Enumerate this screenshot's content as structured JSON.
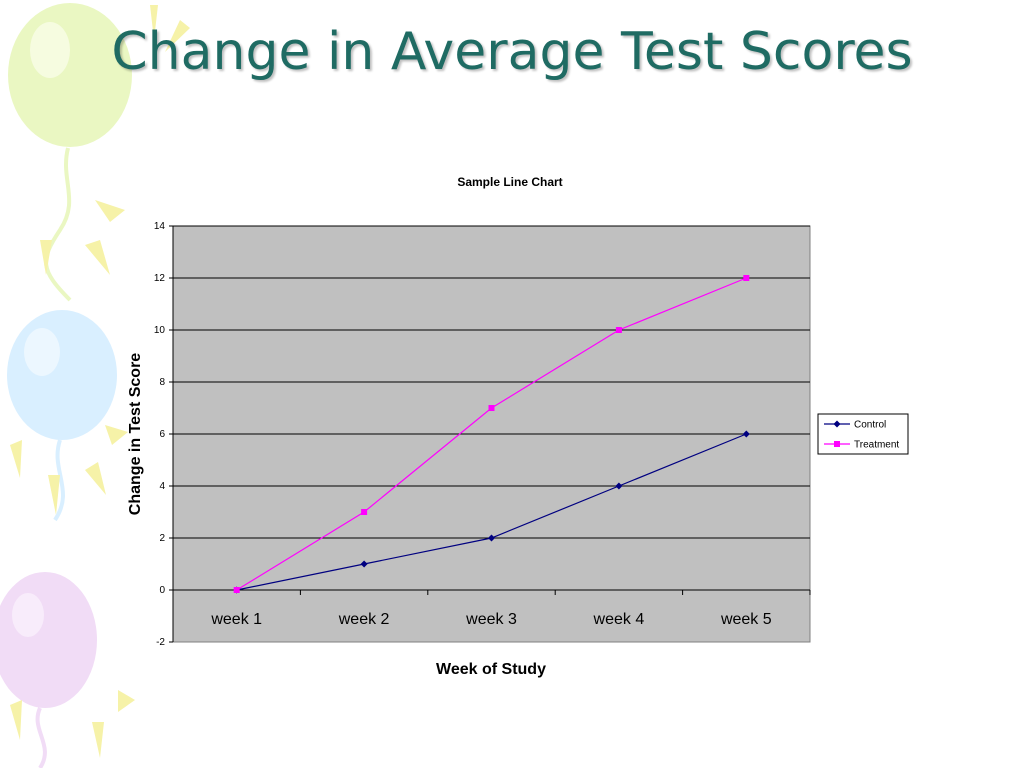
{
  "slide": {
    "title": "Change in Average Test Scores"
  },
  "colors": {
    "title": "#1f6b63",
    "plot_background": "#c0c0c0",
    "gridline": "#000000",
    "control": "#000080",
    "treatment": "#ff00ff",
    "balloon_green": "#eaf7c2",
    "balloon_blue": "#d9efff",
    "balloon_purple": "#f1dcf6",
    "ray_yellow": "#f6f2a8"
  },
  "chart_data": {
    "type": "line",
    "title": "Sample Line Chart",
    "xlabel": "Week of Study",
    "ylabel": "Change in Test Score",
    "categories": [
      "week 1",
      "week 2",
      "week 3",
      "week 4",
      "week 5"
    ],
    "ylim": [
      -2,
      14
    ],
    "yticks": [
      -2,
      0,
      2,
      4,
      6,
      8,
      10,
      12,
      14
    ],
    "grid": true,
    "legend_position": "right",
    "series": [
      {
        "name": "Control",
        "values": [
          0,
          1,
          2,
          4,
          6
        ],
        "marker": "diamond",
        "color": "#000080"
      },
      {
        "name": "Treatment",
        "values": [
          0,
          3,
          7,
          10,
          12
        ],
        "marker": "square",
        "color": "#ff00ff"
      }
    ]
  }
}
